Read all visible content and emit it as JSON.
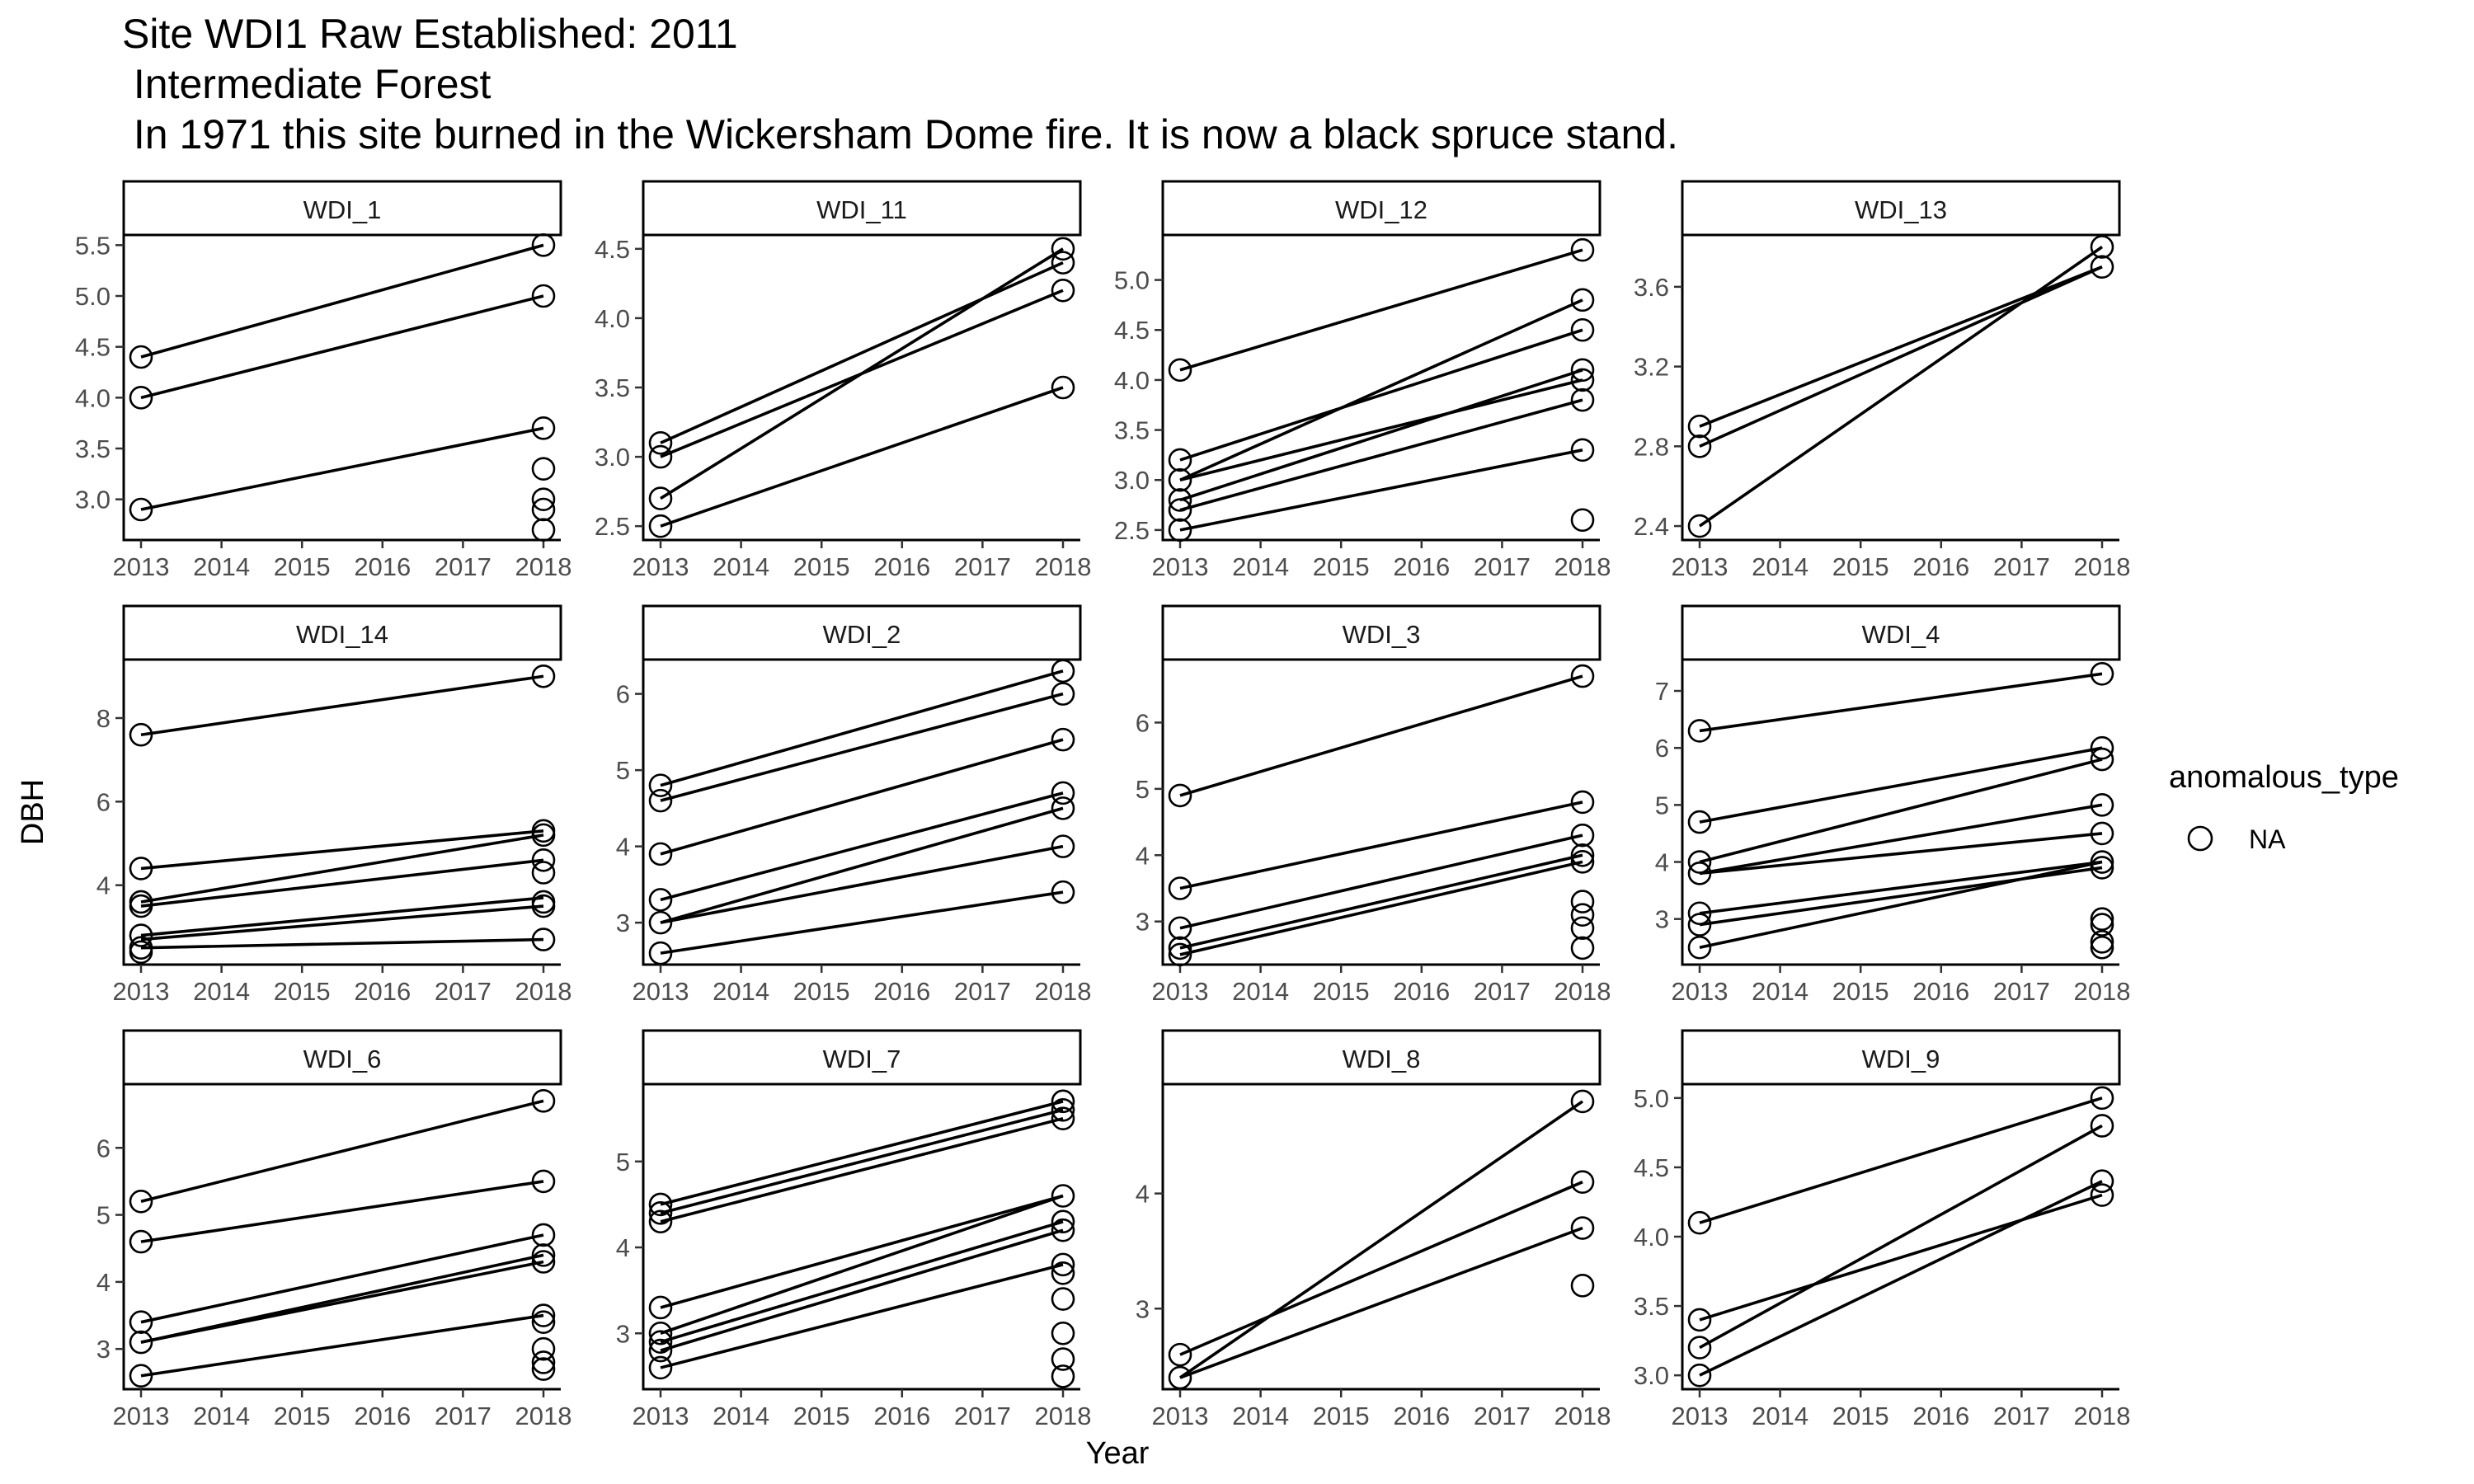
{
  "title_lines": [
    "Site WDI1 Raw Established: 2011",
    " Intermediate Forest",
    " In 1971 this site burned in the Wickersham Dome fire. It is now a black spruce stand."
  ],
  "legend": {
    "title": "anomalous_type",
    "entries": [
      "NA"
    ]
  },
  "chart_data": {
    "type": "scatter",
    "facet_layout": {
      "rows": 3,
      "cols": 4
    },
    "xlabel": "Year",
    "ylabel": "DBH",
    "x_ticks": [
      2013,
      2014,
      2015,
      2016,
      2017,
      2018
    ],
    "xlim": [
      2013,
      2018
    ],
    "marker": "open-circle",
    "color": "#000000",
    "facets": [
      {
        "name": "WDI_1",
        "ylim": [
          2.6,
          5.6
        ],
        "y_ticks": [
          3.0,
          3.5,
          4.0,
          4.5,
          5.0,
          5.5
        ],
        "segments": [
          [
            4.4,
            5.5
          ],
          [
            4.0,
            5.0
          ],
          [
            2.9,
            3.7
          ]
        ],
        "points": [
          {
            "x": 2013,
            "y": 4.4
          },
          {
            "x": 2013,
            "y": 4.0
          },
          {
            "x": 2013,
            "y": 2.9
          },
          {
            "x": 2018,
            "y": 5.5
          },
          {
            "x": 2018,
            "y": 5.0
          },
          {
            "x": 2018,
            "y": 3.7
          },
          {
            "x": 2018,
            "y": 3.3
          },
          {
            "x": 2018,
            "y": 3.0
          },
          {
            "x": 2018,
            "y": 2.9
          },
          {
            "x": 2018,
            "y": 2.7
          }
        ]
      },
      {
        "name": "WDI_11",
        "ylim": [
          2.4,
          4.6
        ],
        "y_ticks": [
          2.5,
          3.0,
          3.5,
          4.0,
          4.5
        ],
        "segments": [
          [
            3.1,
            4.4
          ],
          [
            3.0,
            4.2
          ],
          [
            2.7,
            4.5
          ],
          [
            2.5,
            3.5
          ]
        ],
        "points": [
          {
            "x": 2013,
            "y": 3.1
          },
          {
            "x": 2013,
            "y": 3.0
          },
          {
            "x": 2013,
            "y": 2.7
          },
          {
            "x": 2013,
            "y": 2.5
          },
          {
            "x": 2018,
            "y": 4.5
          },
          {
            "x": 2018,
            "y": 4.4
          },
          {
            "x": 2018,
            "y": 4.2
          },
          {
            "x": 2018,
            "y": 3.5
          }
        ]
      },
      {
        "name": "WDI_12",
        "ylim": [
          2.4,
          5.45
        ],
        "y_ticks": [
          2.5,
          3.0,
          3.5,
          4.0,
          4.5,
          5.0
        ],
        "segments": [
          [
            4.1,
            5.3
          ],
          [
            3.2,
            4.5
          ],
          [
            3.0,
            4.8
          ],
          [
            3.0,
            4.0
          ],
          [
            2.8,
            4.1
          ],
          [
            2.7,
            3.8
          ],
          [
            2.5,
            3.3
          ]
        ],
        "points": [
          {
            "x": 2013,
            "y": 4.1
          },
          {
            "x": 2013,
            "y": 3.2
          },
          {
            "x": 2013,
            "y": 3.0
          },
          {
            "x": 2013,
            "y": 2.8
          },
          {
            "x": 2013,
            "y": 2.7
          },
          {
            "x": 2013,
            "y": 2.5
          },
          {
            "x": 2018,
            "y": 5.3
          },
          {
            "x": 2018,
            "y": 4.8
          },
          {
            "x": 2018,
            "y": 4.5
          },
          {
            "x": 2018,
            "y": 4.1
          },
          {
            "x": 2018,
            "y": 4.0
          },
          {
            "x": 2018,
            "y": 3.8
          },
          {
            "x": 2018,
            "y": 3.3
          },
          {
            "x": 2018,
            "y": 2.6
          }
        ]
      },
      {
        "name": "WDI_13",
        "ylim": [
          2.33,
          3.86
        ],
        "y_ticks": [
          2.4,
          2.8,
          3.2,
          3.6
        ],
        "segments": [
          [
            2.9,
            3.7
          ],
          [
            2.8,
            3.7
          ],
          [
            2.4,
            3.8
          ]
        ],
        "points": [
          {
            "x": 2013,
            "y": 2.9
          },
          {
            "x": 2013,
            "y": 2.8
          },
          {
            "x": 2013,
            "y": 2.4
          },
          {
            "x": 2018,
            "y": 3.8
          },
          {
            "x": 2018,
            "y": 3.7
          }
        ]
      },
      {
        "name": "WDI_14",
        "ylim": [
          2.1,
          9.4
        ],
        "y_ticks": [
          4,
          6,
          8
        ],
        "segments": [
          [
            7.6,
            9.0
          ],
          [
            4.4,
            5.3
          ],
          [
            3.6,
            5.2
          ],
          [
            3.5,
            4.6
          ],
          [
            2.8,
            3.7
          ],
          [
            2.7,
            3.5
          ],
          [
            2.5,
            2.7
          ]
        ],
        "points": [
          {
            "x": 2013,
            "y": 7.6
          },
          {
            "x": 2013,
            "y": 4.4
          },
          {
            "x": 2013,
            "y": 3.6
          },
          {
            "x": 2013,
            "y": 3.5
          },
          {
            "x": 2013,
            "y": 2.8
          },
          {
            "x": 2013,
            "y": 2.5
          },
          {
            "x": 2013,
            "y": 2.4
          },
          {
            "x": 2018,
            "y": 9.0
          },
          {
            "x": 2018,
            "y": 5.3
          },
          {
            "x": 2018,
            "y": 5.2
          },
          {
            "x": 2018,
            "y": 4.6
          },
          {
            "x": 2018,
            "y": 4.3
          },
          {
            "x": 2018,
            "y": 3.6
          },
          {
            "x": 2018,
            "y": 3.5
          },
          {
            "x": 2018,
            "y": 2.7
          }
        ]
      },
      {
        "name": "WDI_2",
        "ylim": [
          2.45,
          6.45
        ],
        "y_ticks": [
          3,
          4,
          5,
          6
        ],
        "segments": [
          [
            4.8,
            6.3
          ],
          [
            4.6,
            6.0
          ],
          [
            3.9,
            5.4
          ],
          [
            3.3,
            4.7
          ],
          [
            3.0,
            4.5
          ],
          [
            3.0,
            4.0
          ],
          [
            2.6,
            3.4
          ]
        ],
        "points": [
          {
            "x": 2013,
            "y": 4.8
          },
          {
            "x": 2013,
            "y": 4.6
          },
          {
            "x": 2013,
            "y": 3.9
          },
          {
            "x": 2013,
            "y": 3.3
          },
          {
            "x": 2013,
            "y": 3.0
          },
          {
            "x": 2013,
            "y": 2.6
          },
          {
            "x": 2018,
            "y": 6.3
          },
          {
            "x": 2018,
            "y": 6.0
          },
          {
            "x": 2018,
            "y": 5.4
          },
          {
            "x": 2018,
            "y": 4.7
          },
          {
            "x": 2018,
            "y": 4.5
          },
          {
            "x": 2018,
            "y": 4.0
          },
          {
            "x": 2018,
            "y": 3.4
          }
        ]
      },
      {
        "name": "WDI_3",
        "ylim": [
          2.35,
          6.95
        ],
        "y_ticks": [
          3,
          4,
          5,
          6
        ],
        "segments": [
          [
            4.9,
            6.7
          ],
          [
            3.5,
            4.8
          ],
          [
            2.9,
            4.3
          ],
          [
            2.6,
            4.0
          ],
          [
            2.5,
            3.9
          ]
        ],
        "points": [
          {
            "x": 2013,
            "y": 4.9
          },
          {
            "x": 2013,
            "y": 3.5
          },
          {
            "x": 2013,
            "y": 2.9
          },
          {
            "x": 2013,
            "y": 2.6
          },
          {
            "x": 2013,
            "y": 2.5
          },
          {
            "x": 2018,
            "y": 6.7
          },
          {
            "x": 2018,
            "y": 4.8
          },
          {
            "x": 2018,
            "y": 4.3
          },
          {
            "x": 2018,
            "y": 4.0
          },
          {
            "x": 2018,
            "y": 3.9
          },
          {
            "x": 2018,
            "y": 3.3
          },
          {
            "x": 2018,
            "y": 3.1
          },
          {
            "x": 2018,
            "y": 2.9
          },
          {
            "x": 2018,
            "y": 2.6
          }
        ]
      },
      {
        "name": "WDI_4",
        "ylim": [
          2.2,
          7.55
        ],
        "y_ticks": [
          3,
          4,
          5,
          6,
          7
        ],
        "segments": [
          [
            6.3,
            7.3
          ],
          [
            4.7,
            6.0
          ],
          [
            4.0,
            5.8
          ],
          [
            3.8,
            5.0
          ],
          [
            3.8,
            4.5
          ],
          [
            3.1,
            4.0
          ],
          [
            2.9,
            3.9
          ],
          [
            2.5,
            4.0
          ]
        ],
        "points": [
          {
            "x": 2013,
            "y": 6.3
          },
          {
            "x": 2013,
            "y": 4.7
          },
          {
            "x": 2013,
            "y": 4.0
          },
          {
            "x": 2013,
            "y": 3.8
          },
          {
            "x": 2013,
            "y": 3.1
          },
          {
            "x": 2013,
            "y": 2.9
          },
          {
            "x": 2013,
            "y": 2.5
          },
          {
            "x": 2018,
            "y": 7.3
          },
          {
            "x": 2018,
            "y": 6.0
          },
          {
            "x": 2018,
            "y": 5.8
          },
          {
            "x": 2018,
            "y": 5.0
          },
          {
            "x": 2018,
            "y": 4.5
          },
          {
            "x": 2018,
            "y": 4.0
          },
          {
            "x": 2018,
            "y": 3.9
          },
          {
            "x": 2018,
            "y": 3.0
          },
          {
            "x": 2018,
            "y": 2.9
          },
          {
            "x": 2018,
            "y": 2.6
          },
          {
            "x": 2018,
            "y": 2.5
          }
        ]
      },
      {
        "name": "WDI_6",
        "ylim": [
          2.4,
          6.95
        ],
        "y_ticks": [
          3,
          4,
          5,
          6
        ],
        "segments": [
          [
            5.2,
            6.7
          ],
          [
            4.6,
            5.5
          ],
          [
            3.4,
            4.7
          ],
          [
            3.1,
            4.4
          ],
          [
            3.1,
            4.3
          ],
          [
            2.6,
            3.5
          ]
        ],
        "points": [
          {
            "x": 2013,
            "y": 5.2
          },
          {
            "x": 2013,
            "y": 4.6
          },
          {
            "x": 2013,
            "y": 3.4
          },
          {
            "x": 2013,
            "y": 3.1
          },
          {
            "x": 2013,
            "y": 2.6
          },
          {
            "x": 2018,
            "y": 6.7
          },
          {
            "x": 2018,
            "y": 5.5
          },
          {
            "x": 2018,
            "y": 4.7
          },
          {
            "x": 2018,
            "y": 4.4
          },
          {
            "x": 2018,
            "y": 4.3
          },
          {
            "x": 2018,
            "y": 3.5
          },
          {
            "x": 2018,
            "y": 3.4
          },
          {
            "x": 2018,
            "y": 3.0
          },
          {
            "x": 2018,
            "y": 2.8
          },
          {
            "x": 2018,
            "y": 2.7
          }
        ]
      },
      {
        "name": "WDI_7",
        "ylim": [
          2.35,
          5.9
        ],
        "y_ticks": [
          3,
          4,
          5
        ],
        "segments": [
          [
            4.5,
            5.7
          ],
          [
            4.4,
            5.6
          ],
          [
            4.3,
            5.5
          ],
          [
            3.3,
            4.6
          ],
          [
            3.0,
            4.6
          ],
          [
            2.9,
            4.3
          ],
          [
            2.8,
            4.2
          ],
          [
            2.6,
            3.8
          ]
        ],
        "points": [
          {
            "x": 2013,
            "y": 4.5
          },
          {
            "x": 2013,
            "y": 4.4
          },
          {
            "x": 2013,
            "y": 4.3
          },
          {
            "x": 2013,
            "y": 3.3
          },
          {
            "x": 2013,
            "y": 3.0
          },
          {
            "x": 2013,
            "y": 2.9
          },
          {
            "x": 2013,
            "y": 2.8
          },
          {
            "x": 2013,
            "y": 2.6
          },
          {
            "x": 2018,
            "y": 5.7
          },
          {
            "x": 2018,
            "y": 5.6
          },
          {
            "x": 2018,
            "y": 5.5
          },
          {
            "x": 2018,
            "y": 4.6
          },
          {
            "x": 2018,
            "y": 4.3
          },
          {
            "x": 2018,
            "y": 4.2
          },
          {
            "x": 2018,
            "y": 3.8
          },
          {
            "x": 2018,
            "y": 3.7
          },
          {
            "x": 2018,
            "y": 3.4
          },
          {
            "x": 2018,
            "y": 3.0
          },
          {
            "x": 2018,
            "y": 2.7
          },
          {
            "x": 2018,
            "y": 2.5
          }
        ]
      },
      {
        "name": "WDI_8",
        "ylim": [
          2.3,
          4.95
        ],
        "y_ticks": [
          3,
          4
        ],
        "segments": [
          [
            2.6,
            4.1
          ],
          [
            2.4,
            4.8
          ],
          [
            2.4,
            3.7
          ]
        ],
        "points": [
          {
            "x": 2013,
            "y": 2.6
          },
          {
            "x": 2013,
            "y": 2.4
          },
          {
            "x": 2018,
            "y": 4.8
          },
          {
            "x": 2018,
            "y": 4.1
          },
          {
            "x": 2018,
            "y": 3.7
          },
          {
            "x": 2018,
            "y": 3.2
          }
        ]
      },
      {
        "name": "WDI_9",
        "ylim": [
          2.9,
          5.1
        ],
        "y_ticks": [
          3.0,
          3.5,
          4.0,
          4.5,
          5.0
        ],
        "segments": [
          [
            4.1,
            5.0
          ],
          [
            3.4,
            4.3
          ],
          [
            3.2,
            4.8
          ],
          [
            3.0,
            4.4
          ]
        ],
        "points": [
          {
            "x": 2013,
            "y": 4.1
          },
          {
            "x": 2013,
            "y": 3.4
          },
          {
            "x": 2013,
            "y": 3.2
          },
          {
            "x": 2013,
            "y": 3.0
          },
          {
            "x": 2018,
            "y": 5.0
          },
          {
            "x": 2018,
            "y": 4.8
          },
          {
            "x": 2018,
            "y": 4.4
          },
          {
            "x": 2018,
            "y": 4.3
          }
        ]
      }
    ]
  }
}
